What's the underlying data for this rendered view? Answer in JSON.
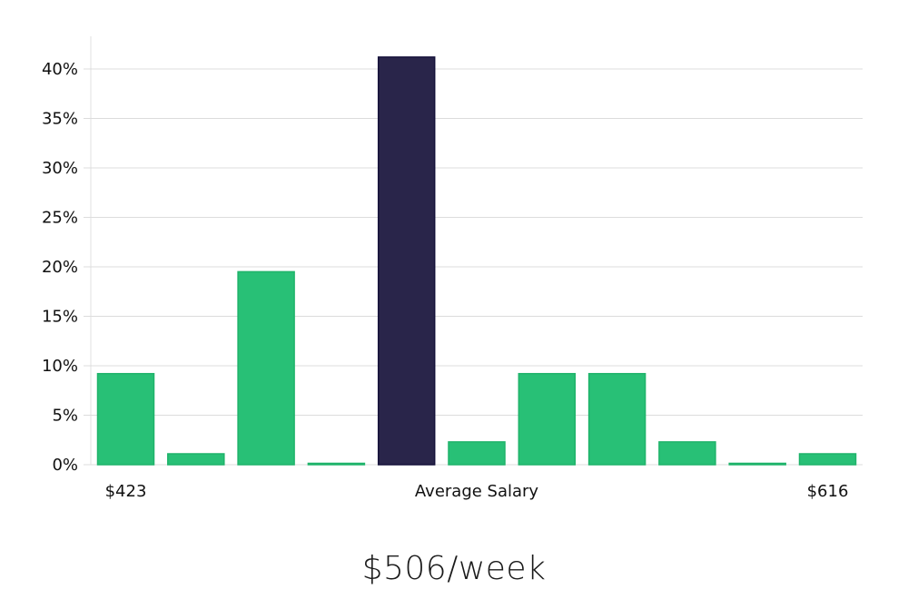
{
  "caption": "$506/week",
  "colors": {
    "bar": "#28c076",
    "bar_stroke": "#1fb36a",
    "highlight": "#29254a",
    "highlight_stroke": "#15123a",
    "gridline": "#dcdcdc",
    "text": "#111111"
  },
  "chart_data": {
    "type": "bar",
    "title": "",
    "xlabel": "",
    "ylabel": "",
    "ylim": [
      0,
      40
    ],
    "y_ticks": [
      0,
      5,
      10,
      15,
      20,
      25,
      30,
      35,
      40
    ],
    "y_tick_suffix": "%",
    "grid": true,
    "values": [
      9.2,
      1.1,
      19.5,
      0.1,
      41.2,
      2.3,
      9.2,
      9.2,
      2.3,
      0.1,
      1.1
    ],
    "highlight_index": 4,
    "x_labels": [
      {
        "bar_index": 0,
        "text": "$423"
      },
      {
        "bar_index": 5,
        "text": "Average Salary"
      },
      {
        "bar_index": 10,
        "text": "$616"
      }
    ]
  }
}
